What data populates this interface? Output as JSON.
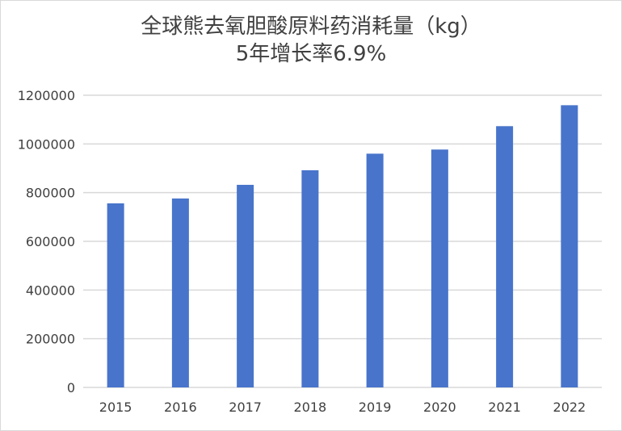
{
  "chart_data": {
    "type": "bar",
    "title": "全球熊去氧胆酸原料药消耗量（kg）",
    "subtitle": "5年增长率6.9%",
    "xlabel": "",
    "ylabel": "",
    "categories": [
      "2015",
      "2016",
      "2017",
      "2018",
      "2019",
      "2020",
      "2021",
      "2022"
    ],
    "values": [
      756000,
      776000,
      832000,
      892000,
      960000,
      977000,
      1073000,
      1159000
    ],
    "ylim": [
      0,
      1200000
    ],
    "yticks": [
      0,
      200000,
      400000,
      600000,
      800000,
      1000000,
      1200000
    ],
    "grid": true,
    "legend": "none",
    "bar_color": "#4874CB",
    "grid_color": "#D9D9D9"
  }
}
